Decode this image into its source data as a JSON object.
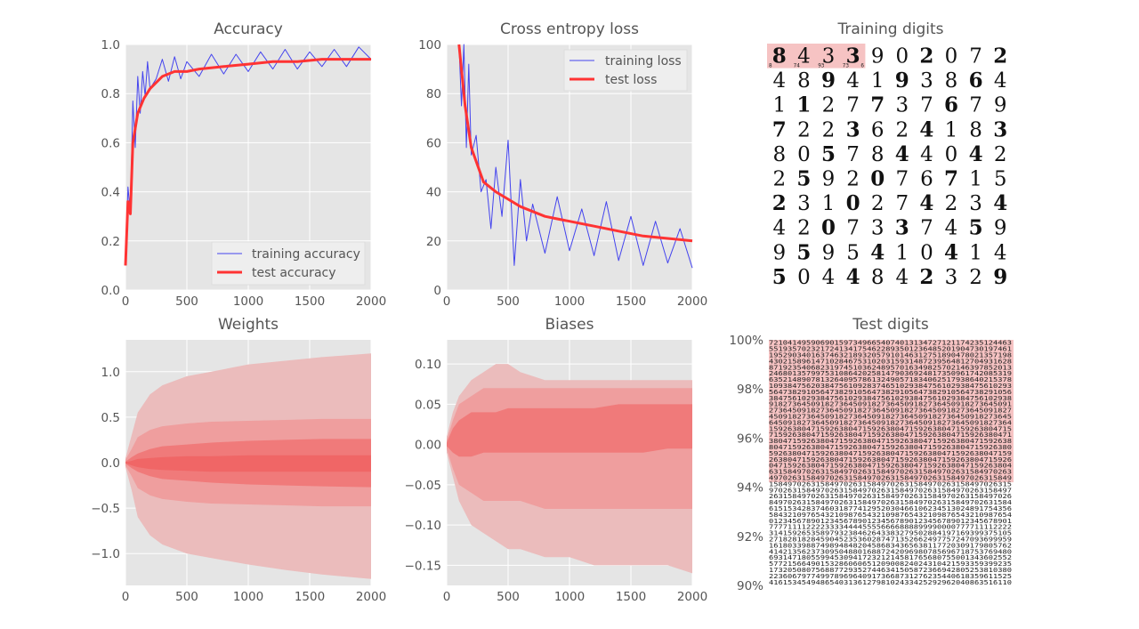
{
  "colors": {
    "panel_bg": "#e5e5e5",
    "grid": "#ffffff",
    "training": "#4444ee",
    "test": "#ff3333",
    "band_outer": "#ebbcbc",
    "band_mid": "#ef9e9e",
    "band_inner": "#f07a7a",
    "highlight": "#f6c3c3",
    "text": "#555555"
  },
  "chart_data": [
    {
      "id": "accuracy",
      "type": "line",
      "title": "Accuracy",
      "xlim": [
        0,
        2000
      ],
      "ylim": [
        0,
        1.0
      ],
      "xticks": [
        "0",
        "500",
        "1000",
        "1500",
        "2000"
      ],
      "yticks": [
        "0.0",
        "0.2",
        "0.4",
        "0.6",
        "0.8",
        "1.0"
      ],
      "legend_position": "bottom-right",
      "series": [
        {
          "name": "training accuracy",
          "style": "thin",
          "x": [
            0,
            20,
            40,
            60,
            80,
            100,
            120,
            140,
            160,
            180,
            200,
            250,
            300,
            350,
            400,
            450,
            500,
            600,
            700,
            800,
            900,
            1000,
            1100,
            1200,
            1300,
            1400,
            1500,
            1600,
            1700,
            1800,
            1900,
            2000
          ],
          "y": [
            0.1,
            0.42,
            0.31,
            0.77,
            0.58,
            0.87,
            0.72,
            0.89,
            0.79,
            0.93,
            0.82,
            0.86,
            0.94,
            0.85,
            0.95,
            0.86,
            0.93,
            0.87,
            0.96,
            0.88,
            0.96,
            0.89,
            0.97,
            0.9,
            0.98,
            0.9,
            0.97,
            0.91,
            0.98,
            0.91,
            0.99,
            0.94
          ]
        },
        {
          "name": "test accuracy",
          "style": "thick",
          "x": [
            0,
            20,
            40,
            60,
            100,
            150,
            200,
            300,
            400,
            500,
            600,
            800,
            1000,
            1200,
            1400,
            1600,
            1800,
            2000
          ],
          "y": [
            0.1,
            0.36,
            0.31,
            0.6,
            0.72,
            0.78,
            0.82,
            0.87,
            0.89,
            0.89,
            0.9,
            0.91,
            0.92,
            0.93,
            0.93,
            0.94,
            0.94,
            0.94
          ]
        }
      ]
    },
    {
      "id": "loss",
      "type": "line",
      "title": "Cross entropy loss",
      "xlim": [
        0,
        2000
      ],
      "ylim": [
        0,
        100
      ],
      "xticks": [
        "0",
        "500",
        "1000",
        "1500",
        "2000"
      ],
      "yticks": [
        "0",
        "20",
        "40",
        "60",
        "80",
        "100"
      ],
      "legend_position": "top-right",
      "series": [
        {
          "name": "training loss",
          "style": "thin",
          "x": [
            100,
            120,
            140,
            160,
            180,
            200,
            240,
            280,
            320,
            360,
            400,
            450,
            500,
            550,
            600,
            650,
            700,
            800,
            900,
            1000,
            1100,
            1200,
            1300,
            1400,
            1500,
            1600,
            1700,
            1800,
            1900,
            2000
          ],
          "y": [
            100,
            75,
            100,
            58,
            92,
            55,
            63,
            40,
            45,
            25,
            50,
            30,
            61,
            10,
            45,
            20,
            35,
            15,
            38,
            16,
            33,
            14,
            36,
            12,
            30,
            10,
            28,
            11,
            25,
            9
          ]
        },
        {
          "name": "test loss",
          "style": "thick",
          "x": [
            100,
            150,
            200,
            300,
            400,
            500,
            600,
            700,
            800,
            900,
            1000,
            1200,
            1400,
            1600,
            1800,
            2000
          ],
          "y": [
            100,
            75,
            58,
            44,
            40,
            37,
            34,
            32,
            30,
            29,
            28,
            26,
            24,
            22,
            21,
            20
          ]
        }
      ]
    },
    {
      "id": "weights",
      "type": "area",
      "title": "Weights",
      "xlim": [
        0,
        2000
      ],
      "ylim": [
        -1.35,
        1.35
      ],
      "xticks": [
        "0",
        "500",
        "1000",
        "1500",
        "2000"
      ],
      "yticks": [
        "1.0",
        "0.5",
        "0.0",
        "−0.5",
        "−1.0"
      ],
      "ytick_values": [
        1.0,
        0.5,
        0.0,
        -0.5,
        -1.0
      ],
      "x": [
        0,
        50,
        100,
        200,
        300,
        500,
        700,
        1000,
        1300,
        1600,
        2000
      ],
      "bands": [
        {
          "level": "outer",
          "upper": [
            0.05,
            0.3,
            0.55,
            0.75,
            0.85,
            0.95,
            1.0,
            1.08,
            1.12,
            1.16,
            1.2
          ],
          "lower": [
            -0.05,
            -0.3,
            -0.6,
            -0.8,
            -0.9,
            -1.0,
            -1.05,
            -1.12,
            -1.18,
            -1.23,
            -1.28
          ]
        },
        {
          "level": "mid",
          "upper": [
            0.03,
            0.15,
            0.28,
            0.36,
            0.4,
            0.43,
            0.45,
            0.46,
            0.47,
            0.48,
            0.48
          ],
          "lower": [
            -0.03,
            -0.15,
            -0.28,
            -0.36,
            -0.4,
            -0.43,
            -0.45,
            -0.46,
            -0.47,
            -0.48,
            -0.48
          ]
        },
        {
          "level": "inner",
          "upper": [
            0.01,
            0.06,
            0.1,
            0.15,
            0.18,
            0.2,
            0.22,
            0.24,
            0.25,
            0.26,
            0.26
          ],
          "lower": [
            -0.01,
            -0.06,
            -0.1,
            -0.15,
            -0.18,
            -0.2,
            -0.22,
            -0.24,
            -0.25,
            -0.26,
            -0.27
          ]
        },
        {
          "level": "core",
          "upper": [
            0.005,
            0.02,
            0.04,
            0.05,
            0.06,
            0.07,
            0.07,
            0.08,
            0.08,
            0.08,
            0.08
          ],
          "lower": [
            -0.005,
            -0.03,
            -0.05,
            -0.07,
            -0.08,
            -0.09,
            -0.1,
            -0.1,
            -0.1,
            -0.1,
            -0.1
          ]
        }
      ]
    },
    {
      "id": "biases",
      "type": "area",
      "title": "Biases",
      "xlim": [
        0,
        2000
      ],
      "ylim": [
        -0.175,
        0.13
      ],
      "xticks": [
        "0",
        "500",
        "1000",
        "1500",
        "2000"
      ],
      "yticks": [
        "0.10",
        "0.05",
        "0.00",
        "−0.05",
        "−0.10",
        "−0.15"
      ],
      "ytick_values": [
        0.1,
        0.05,
        0.0,
        -0.05,
        -0.1,
        -0.15
      ],
      "x": [
        0,
        50,
        100,
        200,
        300,
        400,
        500,
        600,
        800,
        1000,
        1200,
        1400,
        1600,
        1800,
        2000
      ],
      "bands": [
        {
          "level": "outer",
          "upper": [
            0.01,
            0.04,
            0.06,
            0.08,
            0.09,
            0.1,
            0.1,
            0.09,
            0.08,
            0.08,
            0.08,
            0.08,
            0.08,
            0.08,
            0.08
          ],
          "lower": [
            -0.01,
            -0.04,
            -0.07,
            -0.1,
            -0.11,
            -0.12,
            -0.13,
            -0.13,
            -0.14,
            -0.14,
            -0.15,
            -0.15,
            -0.15,
            -0.15,
            -0.16
          ]
        },
        {
          "level": "mid",
          "upper": [
            0.005,
            0.03,
            0.05,
            0.06,
            0.07,
            0.07,
            0.07,
            0.07,
            0.07,
            0.07,
            0.07,
            0.07,
            0.07,
            0.07,
            0.07
          ],
          "lower": [
            -0.005,
            -0.03,
            -0.05,
            -0.06,
            -0.07,
            -0.07,
            -0.07,
            -0.07,
            -0.08,
            -0.08,
            -0.08,
            -0.08,
            -0.08,
            -0.08,
            -0.08
          ]
        },
        {
          "level": "inner",
          "upper": [
            0.002,
            0.02,
            0.03,
            0.04,
            0.04,
            0.04,
            0.045,
            0.045,
            0.045,
            0.045,
            0.045,
            0.05,
            0.05,
            0.05,
            0.05
          ],
          "lower": [
            -0.002,
            -0.01,
            -0.015,
            -0.015,
            -0.01,
            -0.01,
            -0.01,
            -0.01,
            -0.01,
            -0.01,
            -0.01,
            -0.01,
            -0.01,
            -0.005,
            -0.005
          ]
        }
      ]
    }
  ],
  "digit_panels": {
    "training": {
      "title": "Training digits",
      "highlight_count": 4,
      "highlight_labels": [
        "8",
        "74",
        "93",
        "73"
      ],
      "trailing_label": "6",
      "rows": [
        [
          "8",
          "4",
          "3",
          "3",
          "9",
          "0",
          "2",
          "0",
          "7",
          "2"
        ],
        [
          "4",
          "8",
          "9",
          "4",
          "1",
          "9",
          "3",
          "8",
          "6",
          "4"
        ],
        [
          "1",
          "1",
          "2",
          "7",
          "7",
          "3",
          "7",
          "6",
          "7",
          "9"
        ],
        [
          "7",
          "2",
          "2",
          "3",
          "6",
          "2",
          "4",
          "1",
          "8",
          "3"
        ],
        [
          "8",
          "0",
          "5",
          "7",
          "8",
          "4",
          "4",
          "0",
          "4",
          "2"
        ],
        [
          "2",
          "5",
          "9",
          "2",
          "0",
          "7",
          "6",
          "7",
          "1",
          "5"
        ],
        [
          "2",
          "3",
          "1",
          "0",
          "2",
          "7",
          "4",
          "2",
          "3",
          "4"
        ],
        [
          "4",
          "2",
          "0",
          "7",
          "3",
          "3",
          "7",
          "4",
          "5",
          "9"
        ],
        [
          "9",
          "5",
          "9",
          "5",
          "4",
          "1",
          "0",
          "4",
          "1",
          "4"
        ],
        [
          "5",
          "0",
          "4",
          "4",
          "8",
          "4",
          "2",
          "3",
          "2",
          "9"
        ]
      ]
    },
    "test": {
      "title": "Test digits",
      "yticks": [
        "100%",
        "98%",
        "96%",
        "94%",
        "92%",
        "90%"
      ],
      "highlight_fraction": 0.58,
      "rows": [
        "7210414959069015973496654074013134727121174235124463",
        "5519357023217241341754622893501236485201904730197461",
        "1952903401637463218932057910146312751890478021357198",
        "4302158961471028467531020315931487239564812704931628",
        "8719235406823197451036248957016349825702146397852013",
        "2468013579975310864202581479036924817350961742085319",
        "6352148907813264095786132490571834062517938640215378",
        "1093847562038475610928374651029384756102938475610293",
        "5647382910564738291056473829105647382910564738291056",
        "3847561029384756102938475610293847561029384756102938",
        "9182736450918273645091827364509182736450918273645091",
        "2736450918273645091827364509182736450918273645091827",
        "4509182736450918273645091827364509182736450918273645",
        "6450918273645091827364509182736450918273645091827364",
        "1592638047159263804715926380471592638047159263804715",
        "7159263804715926380471592638047159263804715926380471",
        "3804715926380471592638047159263804715926380471592638",
        "8047159263804715926380471592638047159263804715926380",
        "5926380471592638047159263804715926380471592638047159",
        "2638047159263804715926380471592638047159263804715926",
        "0471592638047159263804715926380471592638047159263804",
        "6315849702631584970263158497026315849702631584970263",
        "4970263158497026315849702631584970263158497026315849",
        "1584970263158497026315849702631584970263158497026315",
        "9702631584970263158497026315849702631584970263158497",
        "2631584970263158497026315849702631584970263158497026",
        "8497026315849702631584970263158497026315849702631584",
        "6151534283746031877412952030466106234513024891754356",
        "5843210976543210987654321098765432109876543210987654",
        "0123456789012345678901234567890123456789012345678901",
        "7777111122223333444455556666888899990000777711112222",
        "3141592653589793238462643383279502884197169399375105",
        "2718281828459045235360287471352662497757247093699959",
        "1618033988749894848204586834365638117720309179805762",
        "4142135623730950488016887242096980785696718753769480",
        "6931471805599453094172321214581765680755001343602552",
        "5772156649015328606065120900824024310421593359399235",
        "1732050807568877293527446341505872366942805253810380",
        "2236067977499789696409173668731276235440618359611525",
        "4161534549486540313612798102433425292962040863516110"
      ]
    }
  }
}
